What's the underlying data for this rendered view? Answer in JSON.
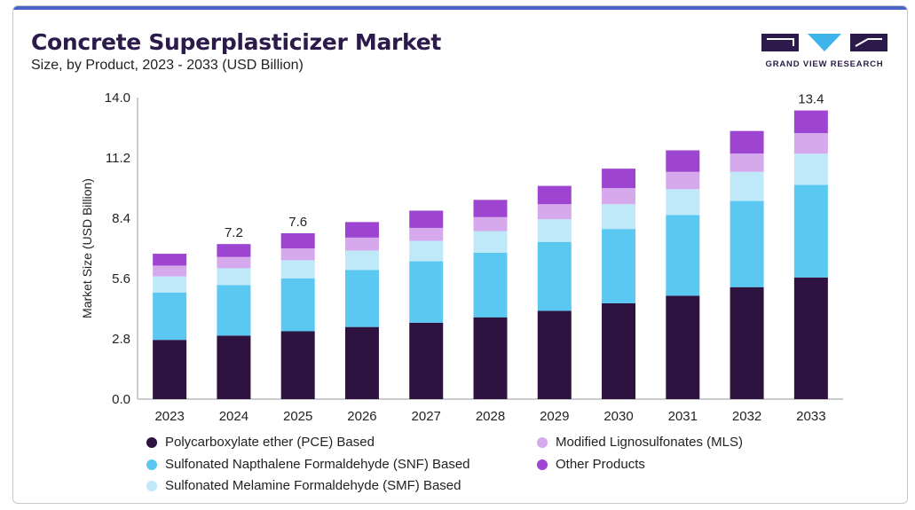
{
  "header": {
    "title": "Concrete Superplasticizer Market",
    "subtitle": "Size, by Product, 2023 - 2033 (USD Billion)",
    "logo_text": "GRAND VIEW RESEARCH"
  },
  "colors": {
    "title": "#2b1a4a",
    "pce": "#2e1340",
    "snf": "#5bc8f2",
    "smf": "#bfe8f8",
    "mls": "#d6a8ec",
    "other": "#9d44d1",
    "logo_dark": "#2b1a4a",
    "logo_blue": "#3fb4ea"
  },
  "chart_data": {
    "type": "bar",
    "stacked": true,
    "categories": [
      "2023",
      "2024",
      "2025",
      "2026",
      "2027",
      "2028",
      "2029",
      "2030",
      "2031",
      "2032",
      "2033"
    ],
    "ylabel": "Market Size (USD Billion)",
    "xlabel": "",
    "ylim": [
      0,
      14.0
    ],
    "yticks": [
      "0.0",
      "2.8",
      "5.6",
      "8.4",
      "11.2",
      "14.0"
    ],
    "grid": false,
    "legend_position": "bottom",
    "series": [
      {
        "name": "Polycarboxylate ether (PCE) Based",
        "color_key": "pce",
        "values": [
          2.75,
          2.95,
          3.15,
          3.35,
          3.55,
          3.8,
          4.1,
          4.45,
          4.8,
          5.2,
          5.65
        ]
      },
      {
        "name": "Sulfonated Napthalene Formaldehyde (SNF) Based",
        "color_key": "snf",
        "values": [
          2.2,
          2.35,
          2.45,
          2.65,
          2.85,
          3.0,
          3.2,
          3.45,
          3.75,
          4.0,
          4.3
        ]
      },
      {
        "name": "Sulfonated Melamine Formaldehyde (SMF) Based",
        "color_key": "smf",
        "values": [
          0.75,
          0.78,
          0.85,
          0.9,
          0.95,
          1.0,
          1.05,
          1.15,
          1.2,
          1.35,
          1.45
        ]
      },
      {
        "name": "Modified Lignosulfonates (MLS)",
        "color_key": "mls",
        "values": [
          0.5,
          0.52,
          0.55,
          0.6,
          0.6,
          0.65,
          0.7,
          0.75,
          0.8,
          0.85,
          0.95
        ]
      },
      {
        "name": "Other Products",
        "color_key": "other",
        "values": [
          0.55,
          0.6,
          0.7,
          0.72,
          0.8,
          0.8,
          0.85,
          0.9,
          1.0,
          1.05,
          1.05
        ]
      }
    ],
    "annotations": [
      {
        "category": "2024",
        "text": "7.2"
      },
      {
        "category": "2025",
        "text": "7.6"
      },
      {
        "category": "2033",
        "text": "13.4"
      }
    ]
  }
}
